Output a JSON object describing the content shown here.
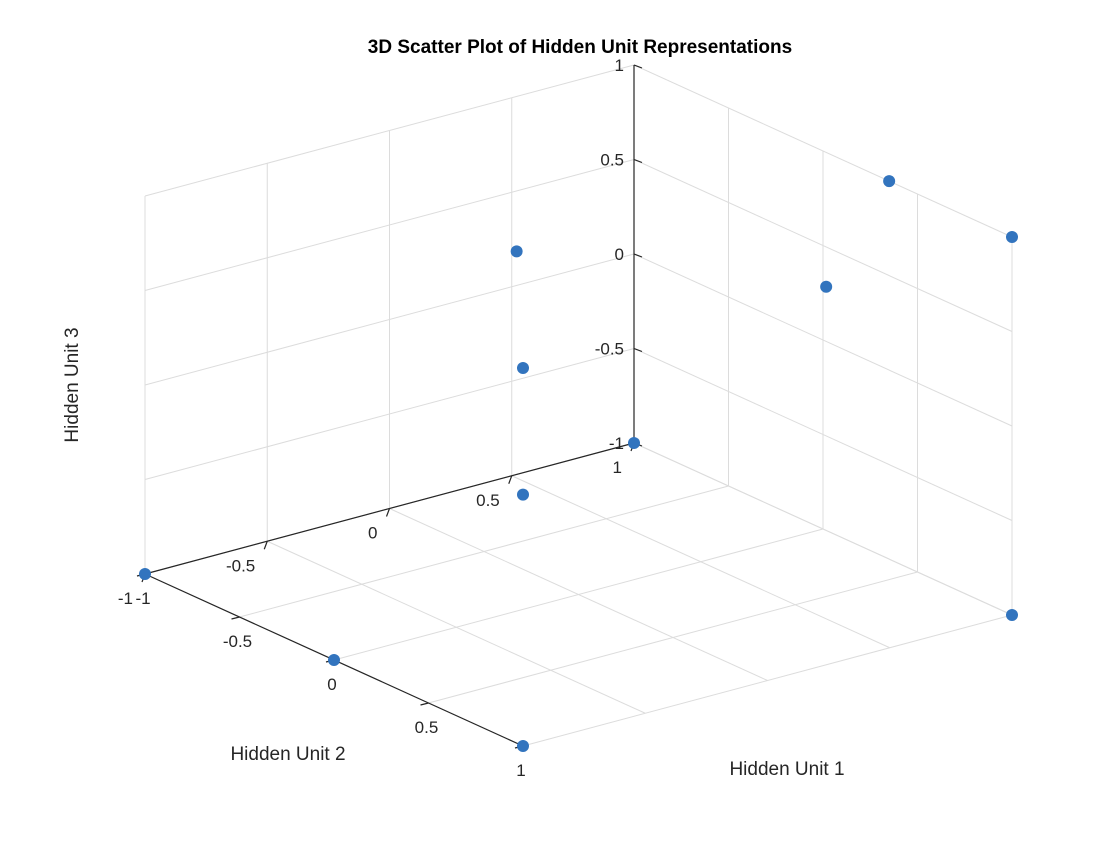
{
  "chart_data": {
    "type": "scatter",
    "title": "3D Scatter Plot of Hidden Unit Representations",
    "xlabel": "Hidden Unit 1",
    "ylabel": "Hidden Unit 2",
    "zlabel": "Hidden Unit 3",
    "xlim": [
      -1,
      1
    ],
    "ylim": [
      -1,
      1
    ],
    "zlim": [
      -1,
      1
    ],
    "xticks": [
      "-1",
      "-0.5",
      "0",
      "0.5",
      "1"
    ],
    "yticks": [
      "-1",
      "-0.5",
      "0",
      "0.5",
      "1"
    ],
    "zticks": [
      "-1",
      "-0.5",
      "0",
      "0.5",
      "1"
    ],
    "grid": true,
    "marker_color": "#3274BE",
    "points": [
      {
        "x": 1,
        "y": 1,
        "z": 1
      },
      {
        "x": 1,
        "y": 0.24,
        "z": 1
      },
      {
        "x": 0.35,
        "y": 1,
        "z": 1
      },
      {
        "x": 1,
        "y": -1,
        "z": 1
      },
      {
        "x": -1,
        "y": 0.52,
        "z": 0.18
      },
      {
        "x": 1,
        "y": -1,
        "z": 0.33
      },
      {
        "x": -1,
        "y": -1,
        "z": -1
      },
      {
        "x": -1,
        "y": 1,
        "z": -1
      },
      {
        "x": 1,
        "y": 1,
        "z": -1
      },
      {
        "x": 0,
        "y": -1,
        "z": -1
      },
      {
        "x": 1,
        "y": -1,
        "z": -1
      }
    ]
  }
}
